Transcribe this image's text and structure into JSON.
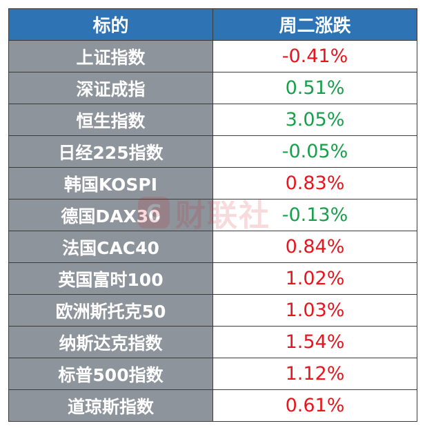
{
  "table": {
    "headers": [
      "标的",
      "周二涨跌"
    ],
    "rows": [
      {
        "name": "上证指数",
        "change": "-0.41%",
        "color": "red"
      },
      {
        "name": "深证成指",
        "change": "0.51%",
        "color": "green"
      },
      {
        "name": "恒生指数",
        "change": "3.05%",
        "color": "green"
      },
      {
        "name": "日经225指数",
        "change": "-0.05%",
        "color": "green"
      },
      {
        "name": "韩国KOSPI",
        "change": "0.83%",
        "color": "red"
      },
      {
        "name": "德国DAX30",
        "change": "-0.13%",
        "color": "green"
      },
      {
        "name": "法国CAC40",
        "change": "0.84%",
        "color": "red"
      },
      {
        "name": "英国富时100",
        "change": "1.02%",
        "color": "red"
      },
      {
        "name": "欧洲斯托克50",
        "change": "1.03%",
        "color": "red"
      },
      {
        "name": "纳斯达克指数",
        "change": "1.54%",
        "color": "red"
      },
      {
        "name": "标普500指数",
        "change": "1.12%",
        "color": "red"
      },
      {
        "name": "道琼斯指数",
        "change": "0.61%",
        "color": "red"
      }
    ]
  },
  "watermark": {
    "logo_glyph": "C",
    "text": "财联社"
  },
  "colors": {
    "header_bg": "#2e74b5",
    "name_bg": "#8e949b",
    "red": "#e8141e",
    "green": "#16a04a"
  }
}
